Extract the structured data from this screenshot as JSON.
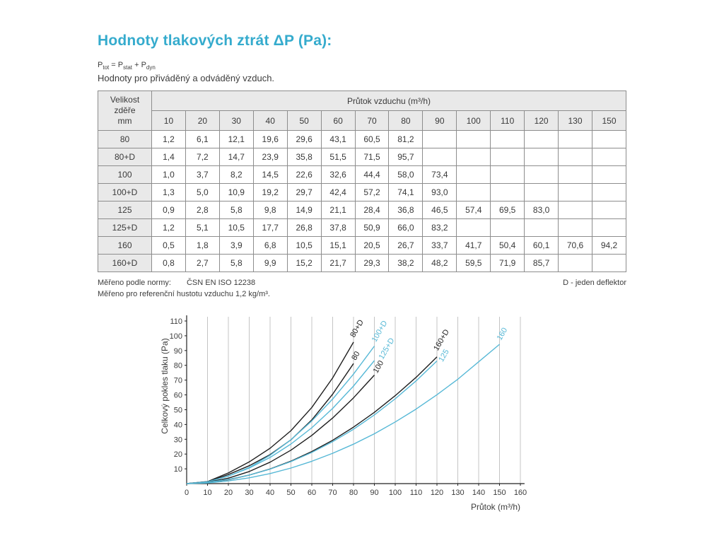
{
  "page": {
    "title": "Hodnoty tlakových ztrát ΔP (Pa):",
    "subtitle": "Hodnoty pro přiváděný a odváděný vzduch."
  },
  "formula": {
    "p1": "P",
    "s1": "tot",
    "m1": " = P",
    "s2": "stat",
    "m2": " + P",
    "s3": "dyn"
  },
  "colors": {
    "accent": "#35abcd",
    "curve_black": "#1f1f1f",
    "curve_cyan": "#56b8d6",
    "grid": "#c4c4c4",
    "axis": "#222222",
    "table_header_bg": "#e9e9e9",
    "table_border": "#8d8d8d"
  },
  "table": {
    "corner": [
      "Velikost",
      "zděře",
      "mm"
    ],
    "flow_header": "Průtok vzduchu (m³/h)",
    "columns": [
      "10",
      "20",
      "30",
      "40",
      "50",
      "60",
      "70",
      "80",
      "90",
      "100",
      "110",
      "120",
      "130",
      "150"
    ],
    "rows": [
      {
        "size": "80",
        "values": [
          "1,2",
          "6,1",
          "12,1",
          "19,6",
          "29,6",
          "43,1",
          "60,5",
          "81,2",
          "",
          "",
          "",
          "",
          "",
          ""
        ]
      },
      {
        "size": "80+D",
        "values": [
          "1,4",
          "7,2",
          "14,7",
          "23,9",
          "35,8",
          "51,5",
          "71,5",
          "95,7",
          "",
          "",
          "",
          "",
          "",
          ""
        ]
      },
      {
        "size": "100",
        "values": [
          "1,0",
          "3,7",
          "8,2",
          "14,5",
          "22,6",
          "32,6",
          "44,4",
          "58,0",
          "73,4",
          "",
          "",
          "",
          "",
          ""
        ]
      },
      {
        "size": "100+D",
        "values": [
          "1,3",
          "5,0",
          "10,9",
          "19,2",
          "29,7",
          "42,4",
          "57,2",
          "74,1",
          "93,0",
          "",
          "",
          "",
          "",
          ""
        ]
      },
      {
        "size": "125",
        "values": [
          "0,9",
          "2,8",
          "5,8",
          "9,8",
          "14,9",
          "21,1",
          "28,4",
          "36,8",
          "46,5",
          "57,4",
          "69,5",
          "83,0",
          "",
          ""
        ]
      },
      {
        "size": "125+D",
        "values": [
          "1,2",
          "5,1",
          "10,5",
          "17,7",
          "26,8",
          "37,8",
          "50,9",
          "66,0",
          "83,2",
          "",
          "",
          "",
          "",
          ""
        ]
      },
      {
        "size": "160",
        "values": [
          "0,5",
          "1,8",
          "3,9",
          "6,8",
          "10,5",
          "15,1",
          "20,5",
          "26,7",
          "33,7",
          "41,7",
          "50,4",
          "60,1",
          "70,6",
          "94,2"
        ]
      },
      {
        "size": "160+D",
        "values": [
          "0,8",
          "2,7",
          "5,8",
          "9,9",
          "15,2",
          "21,7",
          "29,3",
          "38,2",
          "48,2",
          "59,5",
          "71,9",
          "85,7",
          "",
          ""
        ]
      }
    ]
  },
  "notes": {
    "norm_label": "Měřeno podle normy:",
    "norm_value": "ČSN EN ISO 12238",
    "deflector": "D - jeden deflektor",
    "density": "Měřeno pro referenční hustotu vzduchu 1,2 kg/m³."
  },
  "chart_data": {
    "type": "line",
    "title": "",
    "xlabel": "Průtok (m³/h)",
    "ylabel": "Celkový pokles tlaku (Pa)",
    "xlim": [
      0,
      165
    ],
    "ylim": [
      0,
      115
    ],
    "x_ticks": [
      0,
      10,
      20,
      30,
      40,
      50,
      60,
      70,
      80,
      90,
      100,
      110,
      120,
      130,
      140,
      150,
      160
    ],
    "y_ticks": [
      10,
      20,
      30,
      40,
      50,
      60,
      70,
      80,
      90,
      100,
      110
    ],
    "grid": "vertical",
    "legend_position": "curve-end-labels",
    "series": [
      {
        "name": "80+D",
        "color": "black",
        "x": [
          10,
          20,
          30,
          40,
          50,
          60,
          70,
          80
        ],
        "y": [
          1.4,
          7.2,
          14.7,
          23.9,
          35.8,
          51.5,
          71.5,
          95.7
        ],
        "label_dx": 1,
        "label_dy": -6
      },
      {
        "name": "80",
        "color": "black",
        "x": [
          10,
          20,
          30,
          40,
          50,
          60,
          70,
          80
        ],
        "y": [
          1.2,
          6.1,
          12.1,
          19.6,
          29.6,
          43.1,
          60.5,
          81.2
        ],
        "label_dx": 3,
        "label_dy": -4
      },
      {
        "name": "100+D",
        "color": "cyan",
        "x": [
          10,
          20,
          30,
          40,
          50,
          60,
          70,
          80,
          90
        ],
        "y": [
          1.3,
          5.0,
          10.9,
          19.2,
          29.7,
          42.4,
          57.2,
          74.1,
          93.0
        ],
        "label_dx": 2,
        "label_dy": -5
      },
      {
        "name": "125+D",
        "color": "cyan",
        "x": [
          10,
          20,
          30,
          40,
          50,
          60,
          70,
          80,
          90
        ],
        "y": [
          1.2,
          5.1,
          10.5,
          17.7,
          26.8,
          37.8,
          50.9,
          66.0,
          83.2
        ],
        "label_dx": 12,
        "label_dy": -1
      },
      {
        "name": "100",
        "color": "black",
        "x": [
          10,
          20,
          30,
          40,
          50,
          60,
          70,
          80,
          90
        ],
        "y": [
          1.0,
          3.7,
          8.2,
          14.5,
          22.6,
          32.6,
          44.4,
          58.0,
          73.4
        ],
        "label_dx": 4,
        "label_dy": -2
      },
      {
        "name": "160+D",
        "color": "black",
        "x": [
          10,
          20,
          30,
          40,
          50,
          60,
          70,
          80,
          90,
          100,
          110,
          120
        ],
        "y": [
          0.8,
          2.7,
          5.8,
          9.9,
          15.2,
          21.7,
          29.3,
          38.2,
          48.2,
          59.5,
          71.9,
          85.7
        ],
        "label_dx": 1,
        "label_dy": -8
      },
      {
        "name": "125",
        "color": "cyan",
        "x": [
          10,
          20,
          30,
          40,
          50,
          60,
          70,
          80,
          90,
          100,
          110,
          120
        ],
        "y": [
          0.9,
          2.8,
          5.8,
          9.8,
          14.9,
          21.1,
          28.4,
          36.8,
          46.5,
          57.4,
          69.5,
          83.0
        ],
        "label_dx": 8,
        "label_dy": 2
      },
      {
        "name": "160",
        "color": "cyan",
        "x": [
          10,
          20,
          30,
          40,
          50,
          60,
          70,
          80,
          90,
          100,
          110,
          120,
          130,
          150
        ],
        "y": [
          0.5,
          1.8,
          3.9,
          6.8,
          10.5,
          15.1,
          20.5,
          26.7,
          33.7,
          41.7,
          50.4,
          60.1,
          70.6,
          94.2
        ],
        "label_dx": 2,
        "label_dy": -5
      }
    ]
  }
}
